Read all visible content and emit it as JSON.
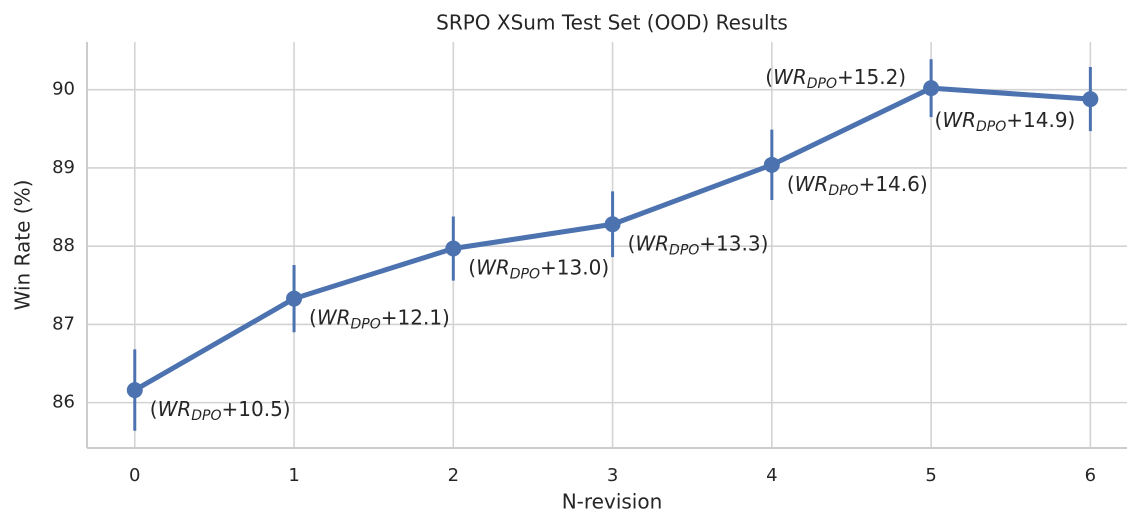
{
  "chart_data": {
    "type": "line",
    "title": "SRPO XSum Test Set (OOD) Results",
    "x_label": "N-revision",
    "y_label": "Win Rate (%)",
    "x": [
      0,
      1,
      2,
      3,
      4,
      5,
      6
    ],
    "xlim": [
      -0.3,
      6.23
    ],
    "xticks": [
      0,
      1,
      2,
      3,
      4,
      5,
      6
    ],
    "ylim": [
      85.42,
      90.61
    ],
    "yticks": [
      86,
      87,
      88,
      89,
      90
    ],
    "grid": true,
    "series": [
      {
        "color": "#4c72b0",
        "values": [
          86.16,
          87.33,
          87.97,
          88.28,
          89.04,
          90.02,
          89.88
        ],
        "errors": [
          0.52,
          0.43,
          0.41,
          0.42,
          0.45,
          0.37,
          0.41
        ]
      }
    ],
    "annotations": [
      [
        "(",
        "WR",
        "DPO",
        "+10.5)"
      ],
      [
        "(",
        "WR",
        "DPO",
        "+12.1)"
      ],
      [
        "(",
        "WR",
        "DPO",
        "+13.0)"
      ],
      [
        "(",
        "WR",
        "DPO",
        "+13.3)"
      ],
      [
        "(",
        "WR",
        "DPO",
        "+14.6)"
      ],
      [
        "(",
        "WR",
        "DPO",
        "+15.2)"
      ],
      [
        "(",
        "WR",
        "DPO",
        "+14.9)"
      ]
    ]
  }
}
